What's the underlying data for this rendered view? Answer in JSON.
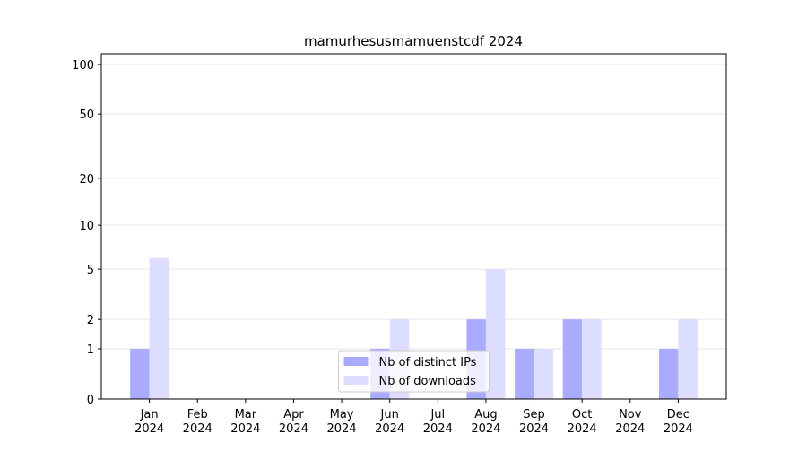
{
  "chart_data": {
    "type": "bar",
    "title": "mamurhesusmamuenstcdf 2024",
    "categories": [
      "Jan 2024",
      "Feb 2024",
      "Mar 2024",
      "Apr 2024",
      "May 2024",
      "Jun 2024",
      "Jul 2024",
      "Aug 2024",
      "Sep 2024",
      "Oct 2024",
      "Nov 2024",
      "Dec 2024"
    ],
    "series": [
      {
        "name": "Nb of distinct IPs",
        "color": "#aaaaff",
        "values": [
          1,
          0,
          0,
          0,
          0,
          1,
          0,
          2,
          1,
          2,
          0,
          1
        ]
      },
      {
        "name": "Nb of downloads",
        "color": "#ddddff",
        "values": [
          6,
          0,
          0,
          0,
          0,
          2,
          0,
          5,
          1,
          2,
          0,
          2
        ]
      }
    ],
    "yscale": "log1p",
    "ylim": [
      0,
      116
    ],
    "yticks": [
      0,
      1,
      2,
      5,
      10,
      20,
      50,
      100
    ],
    "grid": true,
    "legend": "lower center"
  }
}
